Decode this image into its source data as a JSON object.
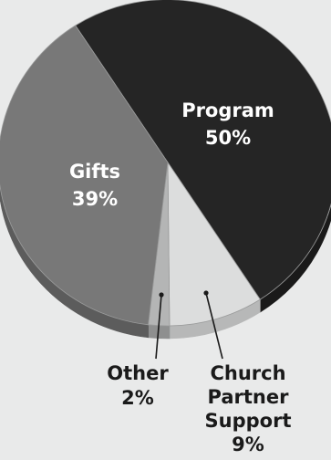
{
  "chart_data": {
    "type": "pie",
    "title": "",
    "slices": [
      {
        "name": "Program",
        "value": 50,
        "label": "50%",
        "color": "#252525",
        "side": "#1a1a1a",
        "text_color": "#ffffff"
      },
      {
        "name": "Church Partner Support",
        "value": 9,
        "label": "9%",
        "color": "#dcdddd",
        "side": "#b7b8b8",
        "text_color": "#1a1a1a"
      },
      {
        "name": "Other",
        "value": 2,
        "label": "2%",
        "color": "#b4b5b5",
        "side": "#8e8f8f",
        "text_color": "#1a1a1a"
      },
      {
        "name": "Gifts",
        "value": 39,
        "label": "39%",
        "color": "#787878",
        "side": "#5c5c5c",
        "text_color": "#ffffff"
      }
    ],
    "label_lines": {
      "Program": [
        "Program",
        "50%"
      ],
      "Church Partner Support": [
        "Church",
        "Partner",
        "Support",
        "9%"
      ],
      "Other": [
        "Other",
        "2%"
      ],
      "Gifts": [
        "Gifts",
        "39%"
      ]
    },
    "legend": "none",
    "style": "3d-tilted"
  },
  "colors": {
    "background": "#e9eaea",
    "leader_line": "#1a1a1a"
  }
}
